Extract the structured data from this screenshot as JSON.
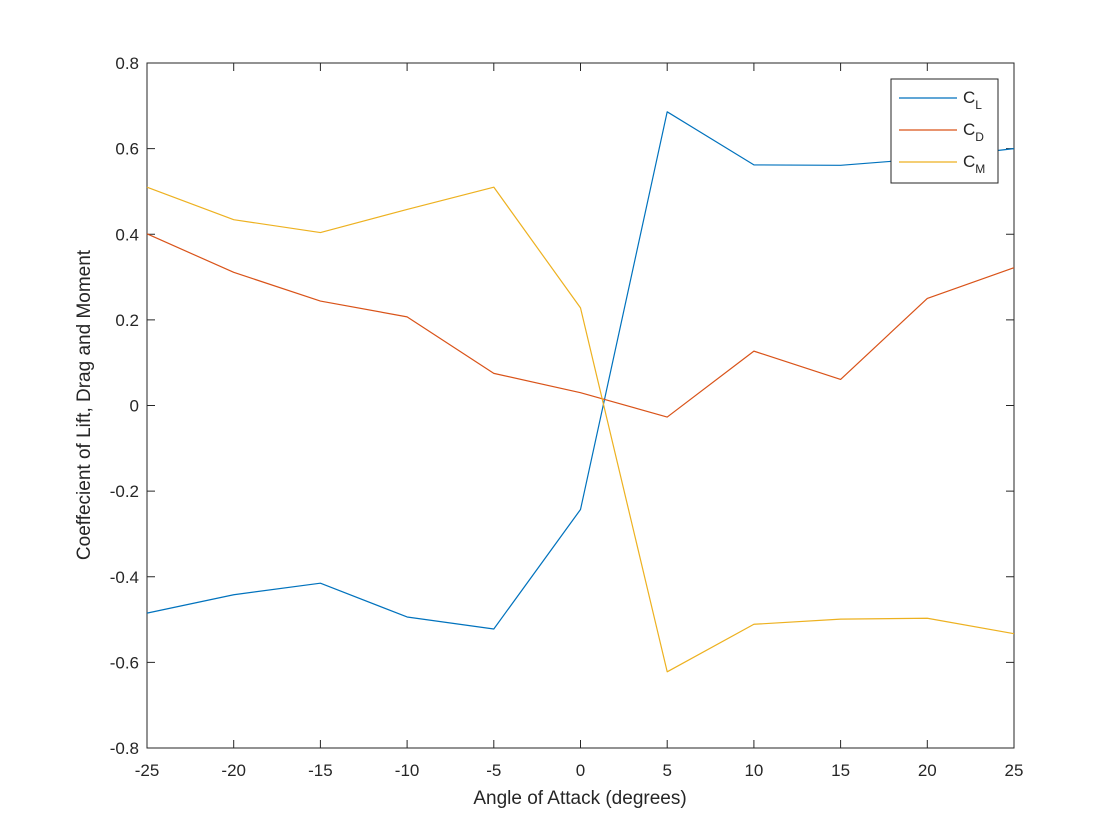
{
  "chart_data": {
    "type": "line",
    "title": "",
    "xlabel": "Angle of Attack (degrees)",
    "ylabel": "Coeffecient of Lift, Drag and Moment",
    "xlim": [
      -25,
      25
    ],
    "ylim": [
      -0.8,
      0.8
    ],
    "xticks": [
      "-25",
      "-20",
      "-15",
      "-10",
      "-5",
      "0",
      "5",
      "10",
      "15",
      "20",
      "25"
    ],
    "yticks": [
      "-0.8",
      "-0.6",
      "-0.4",
      "-0.2",
      "0",
      "0.2",
      "0.4",
      "0.6",
      "0.8"
    ],
    "grid": false,
    "legend_position": "top-right",
    "x": [
      -25,
      -20,
      -15,
      -10,
      -5,
      0,
      5,
      10,
      15,
      20,
      25
    ],
    "series": [
      {
        "name": "C",
        "subscript": "L",
        "color": "#0072BD",
        "values": [
          -0.485,
          -0.442,
          -0.415,
          -0.494,
          -0.522,
          -0.243,
          0.686,
          0.562,
          0.561,
          0.577,
          0.6
        ]
      },
      {
        "name": "C",
        "subscript": "D",
        "color": "#D95319",
        "values": [
          0.401,
          0.311,
          0.244,
          0.207,
          0.075,
          0.03,
          -0.027,
          0.127,
          0.061,
          0.25,
          0.322
        ]
      },
      {
        "name": "C",
        "subscript": "M",
        "color": "#EDB120",
        "values": [
          0.51,
          0.434,
          0.404,
          0.458,
          0.51,
          0.228,
          -0.622,
          -0.511,
          -0.499,
          -0.497,
          -0.533
        ]
      }
    ]
  }
}
